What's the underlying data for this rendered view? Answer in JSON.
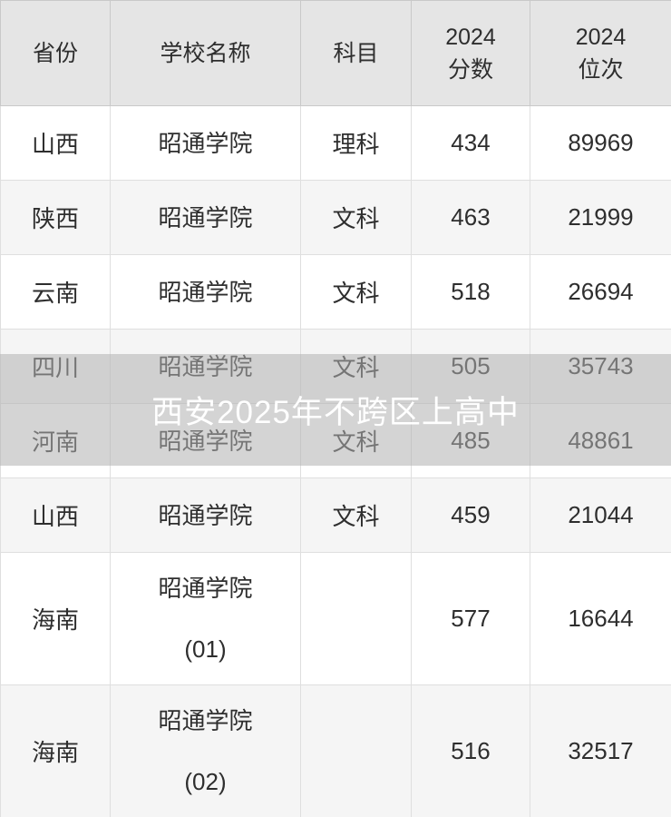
{
  "colors": {
    "header_bg": "#e5e5e5",
    "row_bg": "#ffffff",
    "row_alt_bg": "#f5f5f5",
    "text": "#2e2e2e",
    "body_border": "#dfdfdf",
    "header_border": "#c9c9c9",
    "overlay_bg": "rgba(177,177,177,0.55)",
    "watermark_text_color": "#ffffff"
  },
  "watermark": {
    "text": "西安2025年不跨区上高中"
  },
  "table": {
    "headers": [
      {
        "line1": "省份"
      },
      {
        "line1": "学校名称"
      },
      {
        "line1": "科目"
      },
      {
        "line1": "2024",
        "line2": "分数"
      },
      {
        "line1": "2024",
        "line2": "位次"
      }
    ],
    "rows": [
      {
        "province": "山西",
        "school": "昭通学院",
        "subject": "理科",
        "score_2024": "434",
        "rank_2024": "89969"
      },
      {
        "province": "陕西",
        "school": "昭通学院",
        "subject": "文科",
        "score_2024": "463",
        "rank_2024": "21999"
      },
      {
        "province": "云南",
        "school": "昭通学院",
        "subject": "文科",
        "score_2024": "518",
        "rank_2024": "26694"
      },
      {
        "province": "四川",
        "school": "昭通学院",
        "subject": "文科",
        "score_2024": "505",
        "rank_2024": "35743"
      },
      {
        "province": "河南",
        "school": "昭通学院",
        "subject": "文科",
        "score_2024": "485",
        "rank_2024": "48861"
      },
      {
        "province": "山西",
        "school": "昭通学院",
        "subject": "文科",
        "score_2024": "459",
        "rank_2024": "21044"
      },
      {
        "province": "海南",
        "school": "昭通学院",
        "school_code": "(01)",
        "subject": "",
        "score_2024": "577",
        "rank_2024": "16644"
      },
      {
        "province": "海南",
        "school": "昭通学院",
        "school_code": "(02)",
        "subject": "",
        "score_2024": "516",
        "rank_2024": "32517"
      }
    ]
  },
  "chart_data": {
    "type": "table",
    "title": "",
    "columns": [
      "省份",
      "学校名称",
      "科目",
      "2024 分数",
      "2024 位次"
    ],
    "rows": [
      [
        "山西",
        "昭通学院",
        "理科",
        434,
        89969
      ],
      [
        "陕西",
        "昭通学院",
        "文科",
        463,
        21999
      ],
      [
        "云南",
        "昭通学院",
        "文科",
        518,
        26694
      ],
      [
        "四川",
        "昭通学院",
        "文科",
        505,
        35743
      ],
      [
        "河南",
        "昭通学院",
        "文科",
        485,
        48861
      ],
      [
        "山西",
        "昭通学院",
        "文科",
        459,
        21044
      ],
      [
        "海南",
        "昭通学院 (01)",
        "",
        577,
        16644
      ],
      [
        "海南",
        "昭通学院 (02)",
        "",
        516,
        32517
      ]
    ],
    "annotations": [
      "西安2025年不跨区上高中"
    ]
  }
}
